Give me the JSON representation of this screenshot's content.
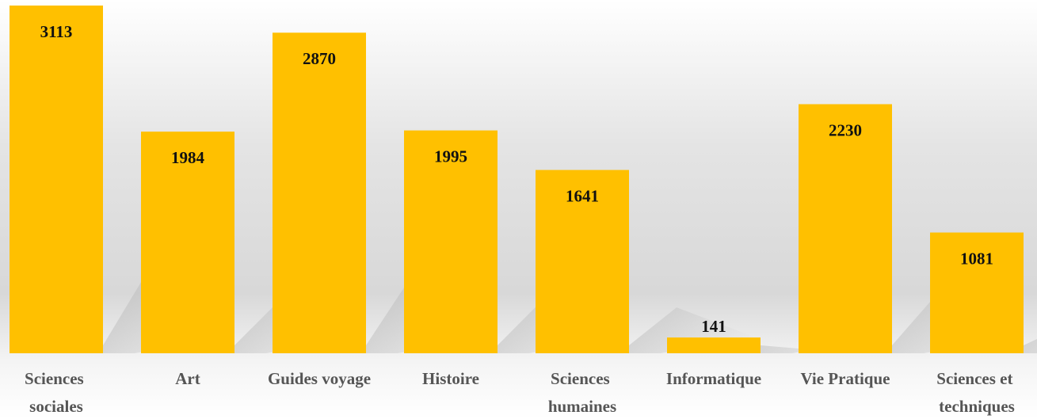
{
  "chart_data": {
    "type": "bar",
    "categories": [
      "Sciences sociales",
      "Art",
      "Guides voyage",
      "Histoire",
      "Sciences humaines",
      "Informatique",
      "Vie Pratique",
      "Sciences et techniques"
    ],
    "values": [
      3113,
      1984,
      2870,
      1995,
      1641,
      141,
      2230,
      1081
    ],
    "color": "#ffc000"
  }
}
